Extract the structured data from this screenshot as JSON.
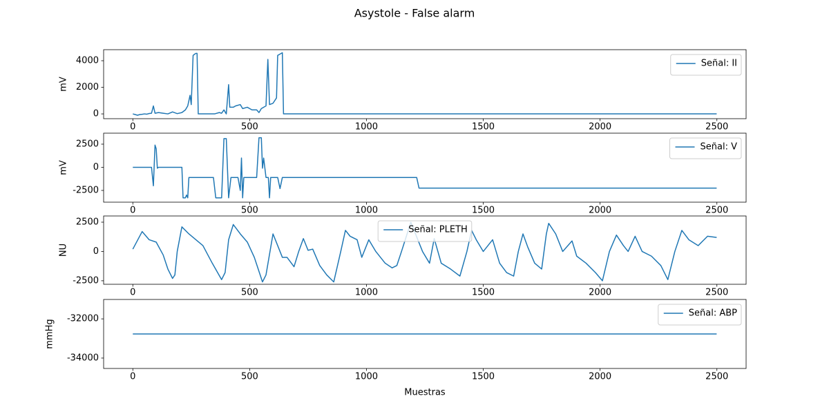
{
  "title": "Asystole - False alarm",
  "chart_data": [
    {
      "type": "line",
      "ylabel": "mV",
      "legend": "upper right",
      "xlim": [
        -125,
        2625
      ],
      "xticks": [
        0,
        500,
        1000,
        1500,
        2000,
        2500
      ],
      "ylim": [
        -360,
        4830
      ],
      "yticks": [
        0,
        2000,
        4000
      ],
      "x": [
        0,
        10,
        20,
        30,
        40,
        50,
        60,
        70,
        80,
        88,
        95,
        110,
        130,
        150,
        170,
        190,
        210,
        225,
        235,
        245,
        250,
        258,
        265,
        270,
        275,
        280,
        290,
        320,
        350,
        370,
        380,
        390,
        400,
        410,
        415,
        430,
        440,
        460,
        470,
        490,
        510,
        530,
        540,
        550,
        570,
        578,
        585,
        600,
        615,
        620,
        630,
        640,
        645,
        700,
        1000,
        1500,
        2000,
        2499
      ],
      "series": [
        {
          "name": "Señal: II",
          "color": "#1f77b4",
          "values": [
            0,
            -50,
            -100,
            -50,
            -30,
            0,
            -20,
            30,
            50,
            600,
            50,
            100,
            50,
            0,
            150,
            20,
            100,
            300,
            600,
            1400,
            700,
            4400,
            4500,
            4550,
            4550,
            0,
            0,
            0,
            0,
            100,
            50,
            300,
            0,
            2200,
            500,
            500,
            600,
            700,
            400,
            500,
            300,
            300,
            100,
            400,
            600,
            4100,
            700,
            800,
            1200,
            4400,
            4500,
            4600,
            0,
            0,
            0,
            0,
            0,
            0
          ]
        }
      ]
    },
    {
      "type": "line",
      "ylabel": "mV",
      "legend": "upper right",
      "xlim": [
        -125,
        2625
      ],
      "xticks": [
        0,
        500,
        1000,
        1500,
        2000,
        2500
      ],
      "ylim": [
        -3770,
        3690
      ],
      "yticks": [
        -2500,
        0,
        2500
      ],
      "x": [
        0,
        50,
        80,
        88,
        95,
        100,
        105,
        110,
        150,
        210,
        215,
        225,
        230,
        235,
        240,
        280,
        345,
        355,
        380,
        390,
        400,
        410,
        420,
        450,
        460,
        465,
        470,
        475,
        530,
        540,
        550,
        555,
        560,
        570,
        580,
        585,
        590,
        620,
        630,
        640,
        700,
        1000,
        1215,
        1225,
        1500,
        2000,
        2499
      ],
      "series": [
        {
          "name": "Señal: V",
          "color": "#1f77b4",
          "values": [
            0,
            0,
            0,
            -2000,
            2400,
            2000,
            -100,
            0,
            0,
            0,
            -3300,
            -3300,
            -3000,
            -3300,
            -1100,
            -1100,
            -1100,
            -3300,
            -3300,
            3100,
            3100,
            -3300,
            -1100,
            -1100,
            -2500,
            1000,
            -3300,
            -1100,
            -1100,
            3200,
            3200,
            -100,
            1000,
            -1100,
            -1100,
            -3300,
            -1100,
            -1100,
            -2300,
            -1100,
            -1100,
            -1100,
            -1100,
            -2250,
            -2250,
            -2250,
            -2250
          ]
        }
      ]
    },
    {
      "type": "line",
      "ylabel": "NU",
      "legend": "upper center",
      "xlim": [
        -125,
        2625
      ],
      "xticks": [
        0,
        500,
        1000,
        1500,
        2000,
        2500
      ],
      "ylim": [
        -2800,
        3030
      ],
      "yticks": [
        -2500,
        0,
        2500
      ],
      "x": [
        0,
        40,
        70,
        100,
        130,
        150,
        170,
        180,
        190,
        210,
        240,
        270,
        300,
        340,
        380,
        395,
        410,
        430,
        460,
        490,
        520,
        555,
        570,
        600,
        620,
        640,
        660,
        690,
        710,
        730,
        750,
        770,
        800,
        830,
        860,
        890,
        910,
        930,
        960,
        980,
        1010,
        1040,
        1080,
        1110,
        1130,
        1150,
        1190,
        1220,
        1240,
        1270,
        1290,
        1320,
        1360,
        1400,
        1430,
        1450,
        1470,
        1500,
        1540,
        1570,
        1600,
        1630,
        1650,
        1670,
        1690,
        1720,
        1750,
        1770,
        1780,
        1810,
        1840,
        1880,
        1900,
        1940,
        1980,
        2010,
        2040,
        2070,
        2100,
        2120,
        2150,
        2180,
        2220,
        2260,
        2290,
        2320,
        2350,
        2380,
        2420,
        2460,
        2499
      ],
      "series": [
        {
          "name": "Señal: PLETH",
          "color": "#1f77b4",
          "values": [
            200,
            1700,
            1000,
            800,
            -300,
            -1500,
            -2300,
            -2000,
            0,
            2100,
            1500,
            1000,
            500,
            -1000,
            -2400,
            -1800,
            1000,
            2300,
            1500,
            800,
            -500,
            -2600,
            -2000,
            1500,
            500,
            -500,
            -500,
            -1300,
            0,
            1100,
            100,
            200,
            -1200,
            -2000,
            -2600,
            0,
            1800,
            1300,
            1000,
            -500,
            1000,
            0,
            -1000,
            -1400,
            -1200,
            0,
            2500,
            1000,
            0,
            -1000,
            1100,
            -1000,
            -1500,
            -2100,
            0,
            1800,
            1000,
            0,
            1000,
            -1000,
            -1800,
            -2100,
            0,
            1500,
            400,
            -1000,
            -1500,
            1500,
            2400,
            1500,
            0,
            900,
            -400,
            -1000,
            -1800,
            -2500,
            0,
            1400,
            500,
            0,
            1300,
            0,
            -400,
            -1200,
            -2400,
            0,
            1800,
            1000,
            500,
            1300,
            1200
          ]
        }
      ]
    },
    {
      "type": "line",
      "ylabel": "mmHg",
      "xlabel": "Muestras",
      "legend": "upper right",
      "xlim": [
        -125,
        2625
      ],
      "xticks": [
        0,
        500,
        1000,
        1500,
        2000,
        2500
      ],
      "ylim": [
        -34530,
        -31010
      ],
      "yticks": [
        -34000,
        -32000
      ],
      "x": [
        0,
        2499
      ],
      "series": [
        {
          "name": "Señal: ABP",
          "color": "#1f77b4",
          "values": [
            -32768,
            -32768
          ]
        }
      ]
    }
  ]
}
